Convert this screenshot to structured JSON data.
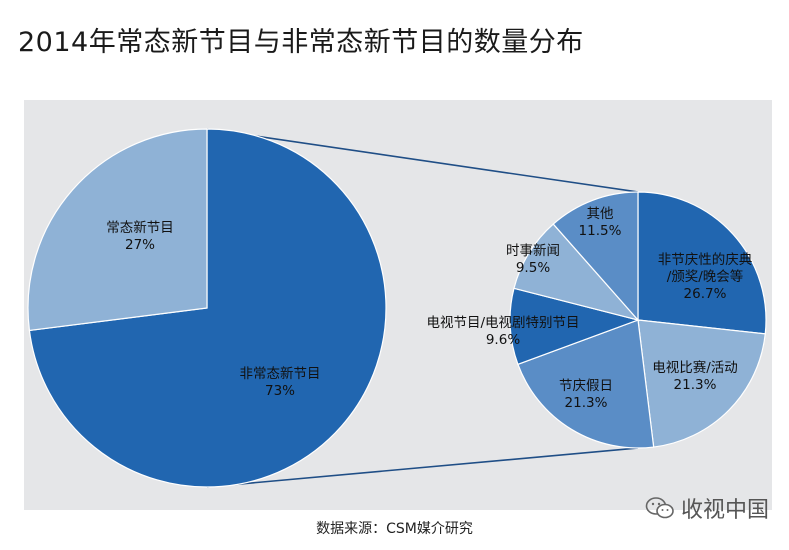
{
  "title": "2014年常态新节目与非常态新节目的数量分布",
  "source": "数据来源：CSM媒介研究",
  "watermark": "收视中国",
  "colors": {
    "main_blue": "#2166b0",
    "light_blue": "#8fb2d6",
    "med_blue": "#5a8dc6",
    "panel_bg": "#e5e6e8"
  },
  "chart_data": [
    {
      "type": "pie",
      "slices": [
        {
          "label": "非常态新节目",
          "value": 73,
          "value_label": "73%",
          "color": "#2166b0"
        },
        {
          "label": "常态新节目",
          "value": 27,
          "value_label": "27%",
          "color": "#8fb2d6"
        }
      ]
    },
    {
      "type": "pie",
      "slices": [
        {
          "label": "非节庆性的庆典/颁奖/晚会等",
          "label_lines": [
            "非节庆性的庆典",
            "/颁奖/晚会等"
          ],
          "value": 26.7,
          "value_label": "26.7%",
          "color": "#2166b0"
        },
        {
          "label": "电视比赛/活动",
          "label_lines": [
            "电视比赛/活动"
          ],
          "value": 21.3,
          "value_label": "21.3%",
          "color": "#8fb2d6"
        },
        {
          "label": "节庆假日",
          "label_lines": [
            "节庆假日"
          ],
          "value": 21.3,
          "value_label": "21.3%",
          "color": "#5a8dc6"
        },
        {
          "label": "电视节目/电视剧特别节目",
          "label_lines": [
            "电视节目/电视剧特别节目"
          ],
          "value": 9.6,
          "value_label": "9.6%",
          "color": "#2166b0"
        },
        {
          "label": "时事新闻",
          "label_lines": [
            "时事新闻"
          ],
          "value": 9.5,
          "value_label": "9.5%",
          "color": "#8fb2d6"
        },
        {
          "label": "其他",
          "label_lines": [
            "其他"
          ],
          "value": 11.5,
          "value_label": "11.5%",
          "color": "#5a8dc6"
        }
      ]
    }
  ]
}
